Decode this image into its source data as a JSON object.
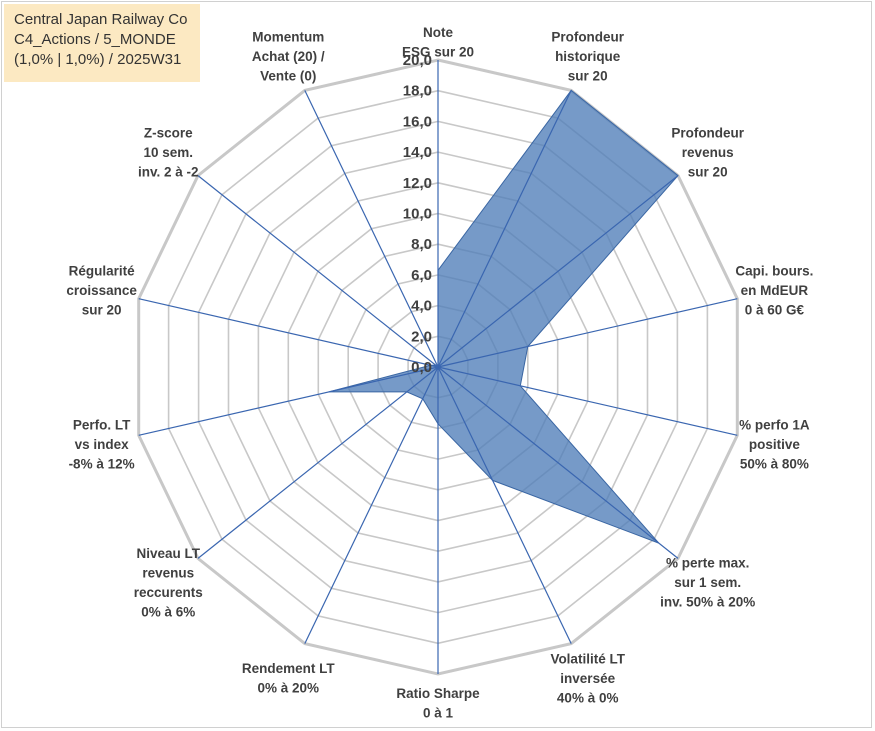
{
  "header": {
    "line1": "Central Japan Railway Co",
    "line2": "C4_Actions / 5_MONDE",
    "line3": "(1,0% | 1,0%) / 2025W31"
  },
  "colors": {
    "series_fill": "#4f7db8",
    "series_stroke": "#3a66a3",
    "grid": "#c8c8c8",
    "spokes": "#3a66b0",
    "title_bg": "#fce9c2"
  },
  "chart_data": {
    "type": "radar",
    "grid": true,
    "r_range": [
      0,
      20
    ],
    "tick_labels": [
      "0,0",
      "2,0",
      "4,0",
      "6,0",
      "8,0",
      "10,0",
      "12,0",
      "14,0",
      "16,0",
      "18,0",
      "20,0"
    ],
    "axes": [
      {
        "lines": [
          "Note",
          "ESG sur 20"
        ]
      },
      {
        "lines": [
          "Profondeur",
          "historique",
          "sur 20"
        ]
      },
      {
        "lines": [
          "Profondeur",
          "revenus",
          "sur 20"
        ]
      },
      {
        "lines": [
          "Capi. bours.",
          "en MdEUR",
          "0 à 60 G€"
        ]
      },
      {
        "lines": [
          "% perfo 1A",
          "positive",
          "50% à 80%"
        ]
      },
      {
        "lines": [
          "% perte max.",
          "sur 1 sem.",
          "inv. 50% à 20%"
        ]
      },
      {
        "lines": [
          "Volatilité LT",
          "inversée",
          "40% à 0%"
        ]
      },
      {
        "lines": [
          "Ratio Sharpe",
          "0 à 1"
        ]
      },
      {
        "lines": [
          "Rendement LT",
          "0% à 20%"
        ]
      },
      {
        "lines": [
          "Niveau LT",
          "revenus",
          "reccurents",
          "0% à 6%"
        ]
      },
      {
        "lines": [
          "Perfo. LT",
          "vs index",
          "-8% à 12%"
        ]
      },
      {
        "lines": [
          "Régularité",
          "croissance",
          "sur 20"
        ]
      },
      {
        "lines": [
          "Z-score",
          "10 sem.",
          "inv. 2 à -2"
        ]
      },
      {
        "lines": [
          "Momentum",
          "Achat (20) /",
          "Vente (0)"
        ]
      }
    ],
    "series": [
      {
        "values": [
          6.3,
          20.0,
          20.0,
          6.0,
          5.5,
          18.4,
          8.2,
          3.7,
          2.3,
          2.6,
          7.3,
          0.5,
          0.2,
          0.0
        ]
      }
    ]
  }
}
